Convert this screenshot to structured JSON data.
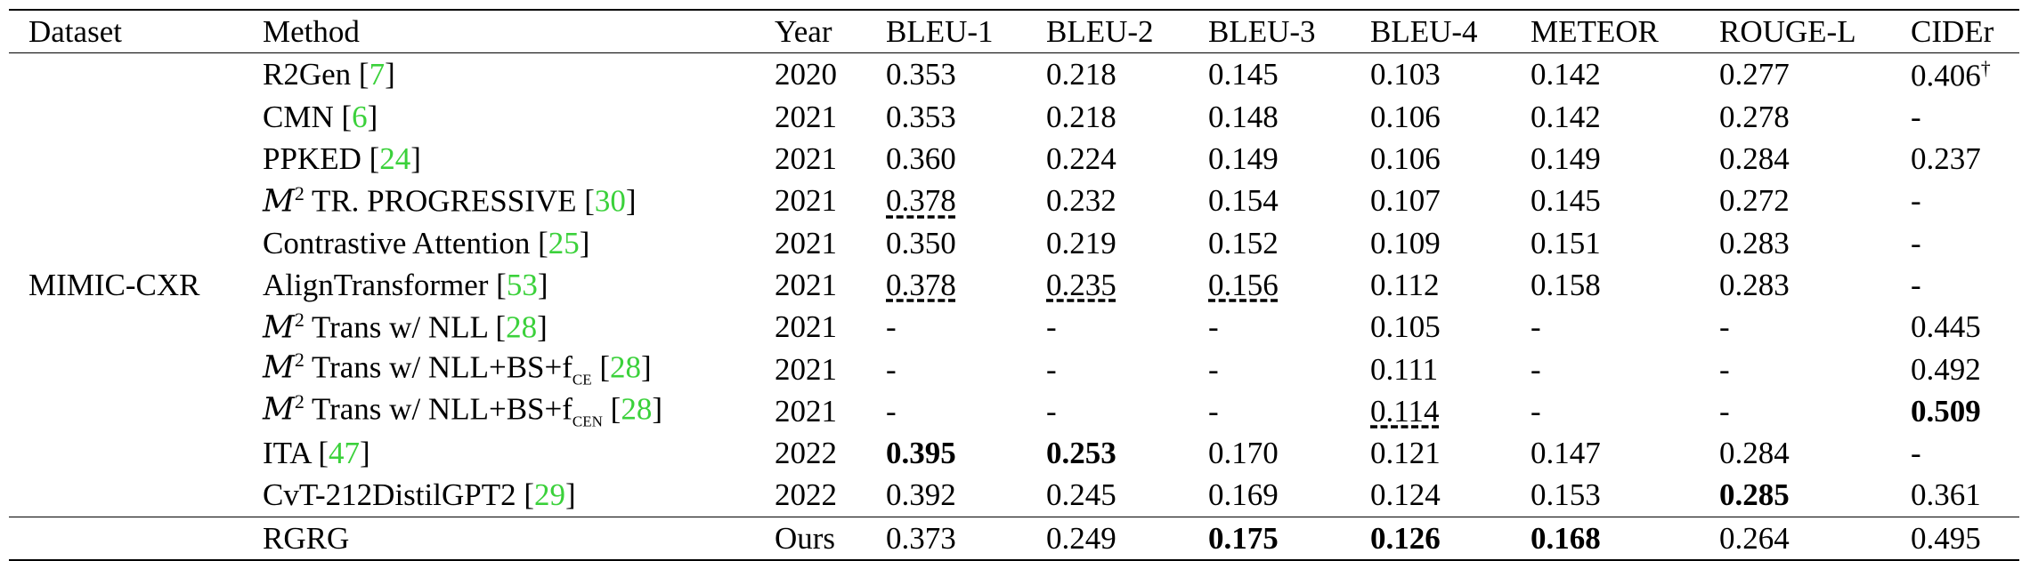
{
  "headers": [
    "Dataset",
    "Method",
    "Year",
    "BLEU-1",
    "BLEU-2",
    "BLEU-3",
    "BLEU-4",
    "METEOR",
    "ROUGE-L",
    "CIDEr"
  ],
  "dataset": "MIMIC-CXR",
  "rows": [
    {
      "m_pre": "",
      "m_sup": "",
      "m_text": "R2Gen",
      "m_sub": "",
      "cite": "7",
      "year": "2020",
      "b1": "0.353",
      "b2": "0.218",
      "b3": "0.145",
      "b4": "0.103",
      "meteor": "0.142",
      "rouge": "0.277",
      "cider": "0.406",
      "cider_mark": "†"
    },
    {
      "m_pre": "",
      "m_sup": "",
      "m_text": "CMN",
      "m_sub": "",
      "cite": "6",
      "year": "2021",
      "b1": "0.353",
      "b2": "0.218",
      "b3": "0.148",
      "b4": "0.106",
      "meteor": "0.142",
      "rouge": "0.278",
      "cider": "-",
      "cider_mark": ""
    },
    {
      "m_pre": "",
      "m_sup": "",
      "m_text": "PPKED",
      "m_sub": "",
      "cite": "24",
      "year": "2021",
      "b1": "0.360",
      "b2": "0.224",
      "b3": "0.149",
      "b4": "0.106",
      "meteor": "0.149",
      "rouge": "0.284",
      "cider": "0.237",
      "cider_mark": ""
    },
    {
      "m_pre": "M",
      "m_sup": "2",
      "m_text": " TR. PROGRESSIVE",
      "m_sub": "",
      "cite": "30",
      "year": "2021",
      "b1": "0.378",
      "b2": "0.232",
      "b3": "0.154",
      "b4": "0.107",
      "meteor": "0.145",
      "rouge": "0.272",
      "cider": "-",
      "cider_mark": ""
    },
    {
      "m_pre": "",
      "m_sup": "",
      "m_text": "Contrastive Attention",
      "m_sub": "",
      "cite": "25",
      "year": "2021",
      "b1": "0.350",
      "b2": "0.219",
      "b3": "0.152",
      "b4": "0.109",
      "meteor": "0.151",
      "rouge": "0.283",
      "cider": "-",
      "cider_mark": ""
    },
    {
      "m_pre": "",
      "m_sup": "",
      "m_text": "AlignTransformer",
      "m_sub": "",
      "cite": "53",
      "year": "2021",
      "b1": "0.378",
      "b2": "0.235",
      "b3": "0.156",
      "b4": "0.112",
      "meteor": "0.158",
      "rouge": "0.283",
      "cider": "-",
      "cider_mark": ""
    },
    {
      "m_pre": "M",
      "m_sup": "2",
      "m_text": " Trans w/ NLL",
      "m_sub": "",
      "cite": "28",
      "year": "2021",
      "b1": "-",
      "b2": "-",
      "b3": "-",
      "b4": "0.105",
      "meteor": "-",
      "rouge": "-",
      "cider": "0.445",
      "cider_mark": ""
    },
    {
      "m_pre": "M",
      "m_sup": "2",
      "m_text": " Trans w/ NLL+BS+f",
      "m_sub": "CE",
      "cite": "28",
      "year": "2021",
      "b1": "-",
      "b2": "-",
      "b3": "-",
      "b4": "0.111",
      "meteor": "-",
      "rouge": "-",
      "cider": "0.492",
      "cider_mark": ""
    },
    {
      "m_pre": "M",
      "m_sup": "2",
      "m_text": " Trans w/ NLL+BS+f",
      "m_sub": "CEN",
      "cite": "28",
      "year": "2021",
      "b1": "-",
      "b2": "-",
      "b3": "-",
      "b4": "0.114",
      "meteor": "-",
      "rouge": "-",
      "cider": "0.509",
      "cider_mark": ""
    },
    {
      "m_pre": "",
      "m_sup": "",
      "m_text": "ITA",
      "m_sub": "",
      "cite": "47",
      "year": "2022",
      "b1": "0.395",
      "b2": "0.253",
      "b3": "0.170",
      "b4": "0.121",
      "meteor": "0.147",
      "rouge": "0.284",
      "cider": "-",
      "cider_mark": ""
    },
    {
      "m_pre": "",
      "m_sup": "",
      "m_text": "CvT-212DistilGPT2",
      "m_sub": "",
      "cite": "29",
      "year": "2022",
      "b1": "0.392",
      "b2": "0.245",
      "b3": "0.169",
      "b4": "0.124",
      "meteor": "0.153",
      "rouge": "0.285",
      "cider": "0.361",
      "cider_mark": ""
    },
    {
      "m_pre": "",
      "m_sup": "",
      "m_text": "RGRG",
      "m_sub": "",
      "cite": "",
      "year": "Ours",
      "b1": "0.373",
      "b2": "0.249",
      "b3": "0.175",
      "b4": "0.126",
      "meteor": "0.168",
      "rouge": "0.264",
      "cider": "0.495",
      "cider_mark": ""
    }
  ],
  "emphasis": {
    "bold": [
      [
        9,
        "b1"
      ],
      [
        9,
        "b2"
      ],
      [
        10,
        "rouge"
      ],
      [
        11,
        "b3"
      ],
      [
        11,
        "b4"
      ],
      [
        11,
        "meteor"
      ],
      [
        8,
        "cider"
      ]
    ],
    "underline": [
      [
        3,
        "b1"
      ],
      [
        5,
        "b1"
      ],
      [
        5,
        "b2"
      ],
      [
        5,
        "b3"
      ],
      [
        8,
        "b4"
      ]
    ]
  }
}
